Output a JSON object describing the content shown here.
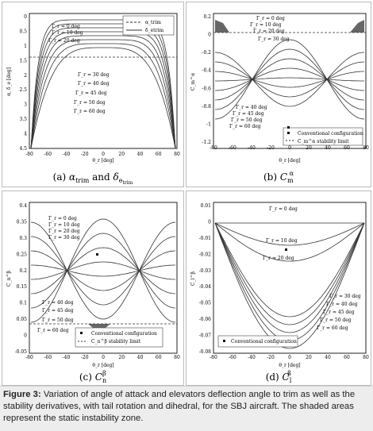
{
  "panels": [
    {
      "id": "a",
      "caption_main": "(a) ",
      "caption_alpha": "α",
      "caption_alpha_sub": "trim",
      "caption_and": " and ",
      "caption_delta": "δ",
      "caption_delta_sub": "e",
      "caption_delta_subsub": "trim",
      "ylabel": "α, δ_e [deg]",
      "xlabel": "θ_r [deg]",
      "xticks": [
        "-80",
        "-60",
        "-40",
        "-20",
        "0",
        "20",
        "40",
        "60",
        "80"
      ],
      "yticks": [
        "0",
        "0.5",
        "1",
        "1.5",
        "2",
        "2.5",
        "3",
        "3.5",
        "4",
        "4.5"
      ],
      "legend": [
        "α_trim",
        "δ_etrim"
      ],
      "curve_labels": [
        "Γ_r = 0 deg",
        "Γ_r = 10 deg",
        "Γ_r = 20 deg",
        "Γ_r = 30 deg",
        "Γ_r = 40 deg",
        "Γ_r = 45 deg",
        "Γ_r = 50 deg",
        "Γ_r = 60 deg"
      ]
    },
    {
      "id": "b",
      "caption_main": "(b) ",
      "caption_sym": "C",
      "caption_sub": "m",
      "caption_sup": "α",
      "ylabel": "C_m^α",
      "xlabel": "θ_r [deg]",
      "xticks": [
        "-80",
        "-60",
        "-40",
        "-20",
        "0",
        "20",
        "40",
        "60",
        "80"
      ],
      "yticks": [
        "0.2",
        "0",
        "-0.2",
        "-0.4",
        "-0.6",
        "-0.8",
        "-1",
        "-1.2"
      ],
      "curve_labels": [
        "Γ_r = 0 deg",
        "Γ_r = 10 deg",
        "Γ_r = 20 deg",
        "Γ_r = 30 deg",
        "Γ_r = 40 deg",
        "Γ_r = 45 deg",
        "Γ_r = 50 deg",
        "Γ_r = 60 deg"
      ],
      "legend": [
        "Conventional configuration",
        "C_m^α stability limit"
      ]
    },
    {
      "id": "c",
      "caption_main": "(c) ",
      "caption_sym": "C",
      "caption_sub": "n",
      "caption_sup": "β",
      "ylabel": "C_n^β",
      "xlabel": "θ_r [deg]",
      "xticks": [
        "-80",
        "-60",
        "-40",
        "-20",
        "0",
        "20",
        "40",
        "60",
        "80"
      ],
      "yticks": [
        "0.4",
        "0.35",
        "0.3",
        "0.25",
        "0.2",
        "0.15",
        "0.1",
        "0.05",
        "0",
        "-0.05"
      ],
      "curve_labels": [
        "Γ_r = 0 deg",
        "Γ_r = 10 deg",
        "Γ_r = 20 deg",
        "Γ_r = 30 deg",
        "Γ_r = 40 deg",
        "Γ_r = 45 deg",
        "Γ_r = 50 deg",
        "Γ_r = 60 deg"
      ],
      "legend": [
        "Conventional configuration",
        "C_n^β stability limit"
      ]
    },
    {
      "id": "d",
      "caption_main": "(d) ",
      "caption_sym": "C",
      "caption_sub": "l",
      "caption_sup": "β",
      "ylabel": "C_l^β",
      "xlabel": "θ_r [deg]",
      "xticks": [
        "-80",
        "-60",
        "-40",
        "-20",
        "0",
        "20",
        "40",
        "60",
        "80"
      ],
      "yticks": [
        "0.01",
        "0",
        "-0.01",
        "-0.02",
        "-0.03",
        "-0.04",
        "-0.05",
        "-0.06",
        "-0.07",
        "-0.08"
      ],
      "curve_labels": [
        "Γ_r = 0 deg",
        "Γ_r = 10 deg",
        "Γ_r = 20 deg",
        "Γ_r = 30 deg",
        "Γ_r = 40 deg",
        "Γ_r = 45 deg",
        "Γ_r = 50 deg",
        "Γ_r = 60 deg"
      ],
      "legend": [
        "Conventional configuration"
      ]
    }
  ],
  "caption": {
    "label": "Figure 3:",
    "text": " Variation of angle of attack and elevators deflection angle to trim as well as the stability derivatives, with tail rotation and dihedral, for the SBJ aircraft. The shaded areas represent the static instability zone."
  }
}
